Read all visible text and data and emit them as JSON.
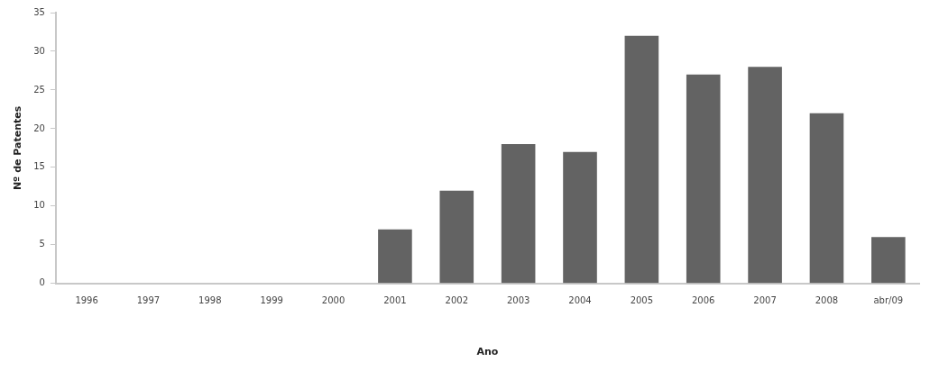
{
  "chart_data": {
    "type": "bar",
    "xlabel": "Ano",
    "ylabel": "Nº de Patentes",
    "categories": [
      "1996",
      "1997",
      "1998",
      "1999",
      "2000",
      "2001",
      "2002",
      "2003",
      "2004",
      "2005",
      "2006",
      "2007",
      "2008",
      "abr/09"
    ],
    "values": [
      0,
      0,
      0,
      0,
      0,
      7,
      12,
      18,
      17,
      32,
      27,
      28,
      22,
      6
    ],
    "color": "#636363",
    "ylim": [
      0,
      35
    ],
    "yticks": [
      0,
      5,
      10,
      15,
      20,
      25,
      30,
      35
    ],
    "grid": false,
    "legend": false
  }
}
